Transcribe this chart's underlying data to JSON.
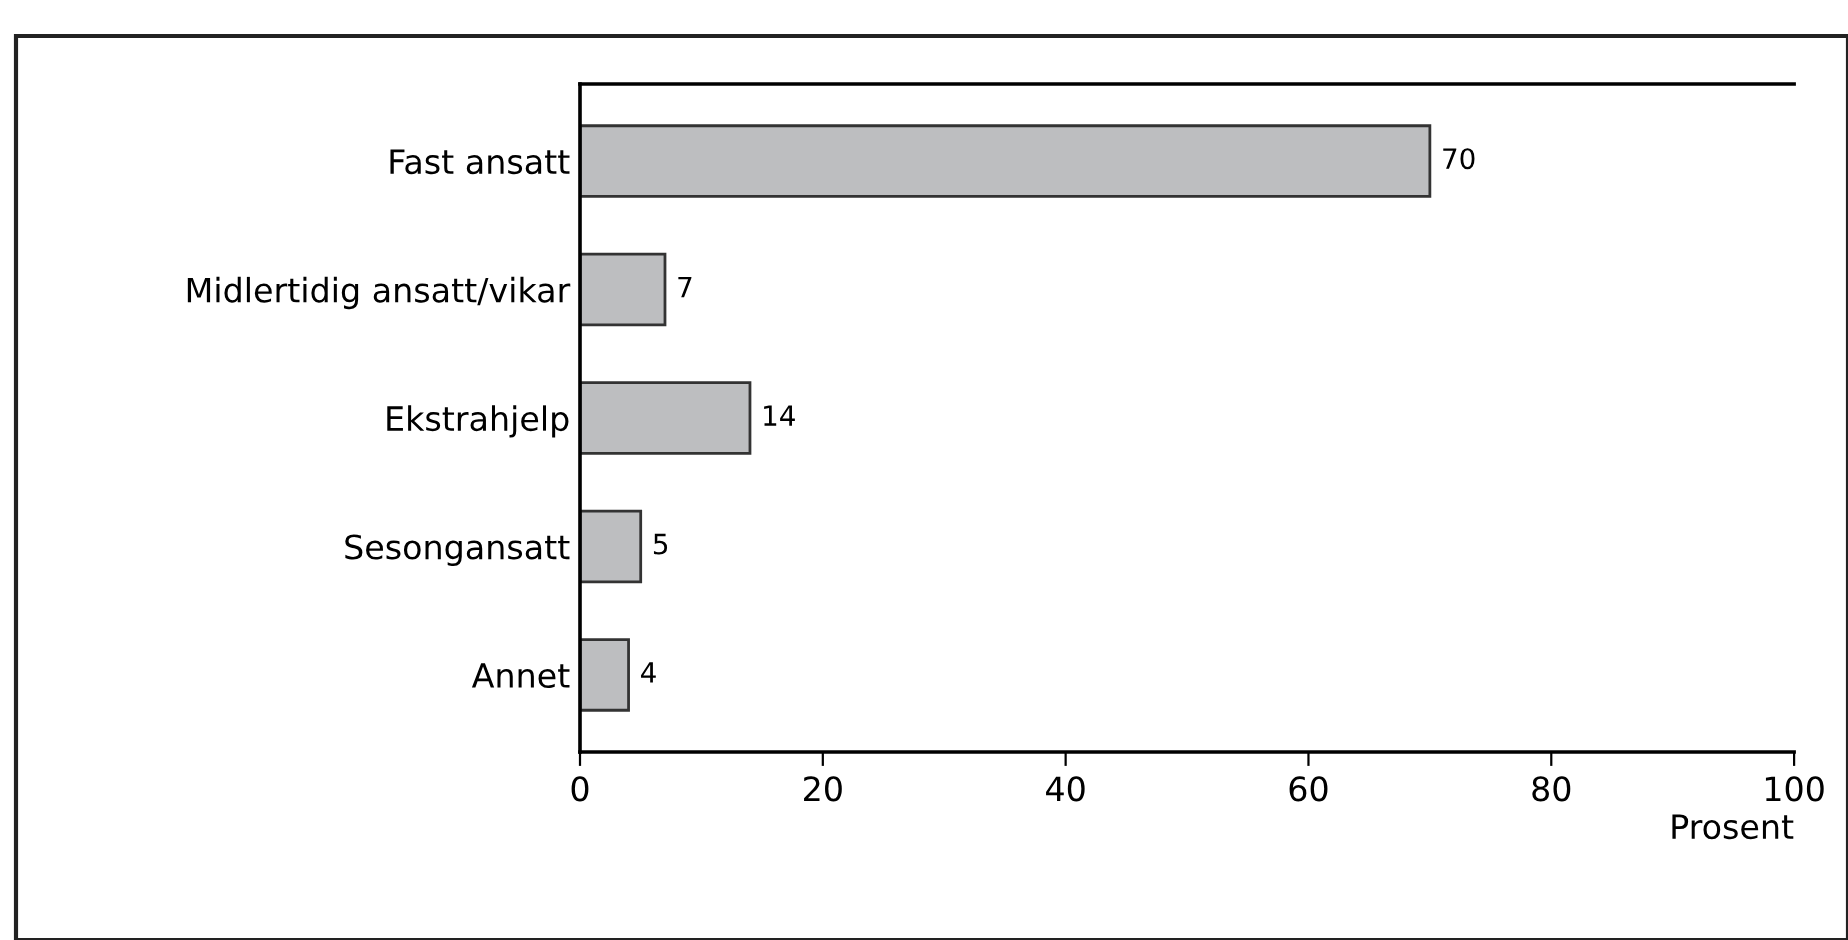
{
  "chart_data": {
    "type": "bar",
    "orientation": "horizontal",
    "xlabel": "Prosent",
    "categories": [
      "Fast ansatt",
      "Midlertidig ansatt/vikar",
      "Ekstrahjelp",
      "Sesongansatt",
      "Annet"
    ],
    "values": [
      70,
      7,
      14,
      5,
      4
    ],
    "color": "#bdbec0",
    "xlim": [
      0,
      100
    ],
    "xticks": [
      0,
      20,
      40,
      60,
      80,
      100
    ],
    "grid": false,
    "data_labels": true
  }
}
